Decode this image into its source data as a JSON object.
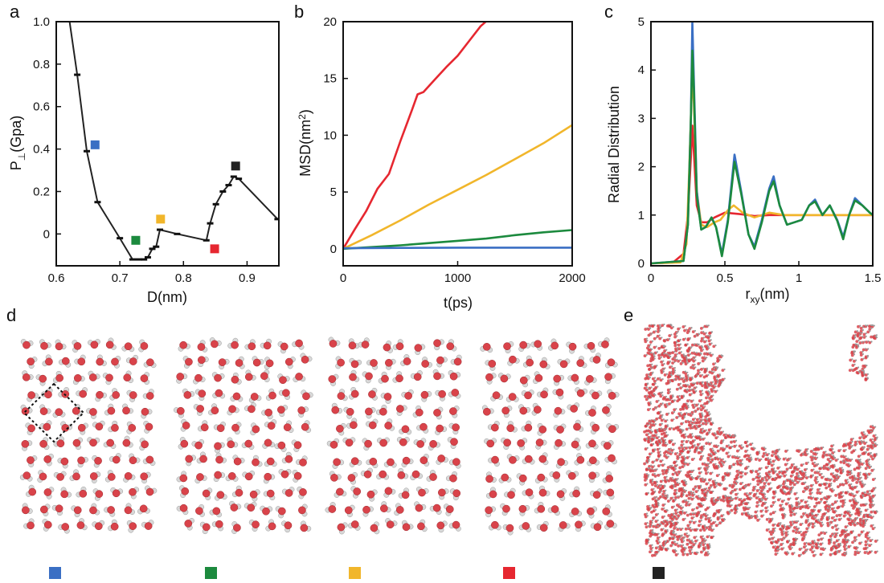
{
  "panel_letters": [
    "a",
    "b",
    "c",
    "d",
    "e"
  ],
  "colors": {
    "blue": "#3a6fc4",
    "green": "#1c8a3e",
    "yellow": "#f1b62b",
    "red": "#e62730",
    "black": "#222222",
    "oxygen": "#d9434a",
    "hydrogen": "#d8d8d8"
  },
  "legend_squares": [
    "blue",
    "green",
    "yellow",
    "red",
    "black"
  ],
  "chart_data": [
    {
      "panel": "a",
      "type": "line",
      "xlabel_main": "D(nm)",
      "ylabel_main": "P",
      "ylabel_sub": "⊥",
      "ylabel_rest": "(Gpa)",
      "xlim": [
        0.6,
        0.95
      ],
      "ylim": [
        -0.15,
        1.0
      ],
      "xticks": [
        0.6,
        0.7,
        0.8,
        0.9
      ],
      "xtick_labels": [
        "0.6",
        "0.7",
        "0.8",
        "0.9"
      ],
      "yticks": [
        0,
        0.2,
        0.4,
        0.6,
        0.8,
        1.0
      ],
      "ytick_labels": [
        "0",
        "0.2",
        "0.4",
        "0.6",
        "0.8",
        "1.0"
      ],
      "series": [
        {
          "color": "black",
          "x": [
            0.621,
            0.633,
            0.648,
            0.665,
            0.7,
            0.72,
            0.73,
            0.738,
            0.744,
            0.751,
            0.757,
            0.763,
            0.79,
            0.836,
            0.842,
            0.851,
            0.862,
            0.871,
            0.879,
            0.887,
            0.948
          ],
          "y": [
            1.0,
            0.75,
            0.39,
            0.15,
            -0.02,
            -0.12,
            -0.12,
            -0.12,
            -0.11,
            -0.07,
            -0.06,
            0.02,
            0.0,
            -0.03,
            0.05,
            0.14,
            0.2,
            0.23,
            0.27,
            0.26,
            0.07
          ]
        }
      ],
      "markers": [
        {
          "color": "blue",
          "x": 0.661,
          "y": 0.42
        },
        {
          "color": "green",
          "x": 0.725,
          "y": -0.03
        },
        {
          "color": "yellow",
          "x": 0.764,
          "y": 0.07
        },
        {
          "color": "red",
          "x": 0.849,
          "y": -0.07
        },
        {
          "color": "black",
          "x": 0.882,
          "y": 0.32
        }
      ]
    },
    {
      "panel": "b",
      "type": "line",
      "xlabel_main": "t(ps)",
      "ylabel_main": "MSD(nm",
      "ylabel_sup": "2",
      "ylabel_rest": ")",
      "xlim": [
        0,
        2000
      ],
      "ylim": [
        -1.5,
        20
      ],
      "xticks": [
        0,
        1000,
        2000
      ],
      "xtick_labels": [
        "0",
        "1000",
        "2000"
      ],
      "yticks": [
        0,
        5,
        10,
        15,
        20
      ],
      "ytick_labels": [
        "0",
        "5",
        "10",
        "15",
        "20"
      ],
      "series": [
        {
          "color": "red",
          "x": [
            0,
            100,
            200,
            300,
            400,
            500,
            600,
            650,
            700,
            800,
            900,
            1000,
            1100,
            1200,
            1245
          ],
          "y": [
            0,
            1.7,
            3.3,
            5.3,
            6.6,
            9.5,
            12.2,
            13.6,
            13.8,
            14.9,
            16.0,
            17.0,
            18.3,
            19.6,
            20.0
          ]
        },
        {
          "color": "yellow",
          "x": [
            0,
            250,
            500,
            750,
            1000,
            1250,
            1500,
            1750,
            2000
          ],
          "y": [
            0,
            1.2,
            2.5,
            3.9,
            5.2,
            6.5,
            7.9,
            9.3,
            10.9
          ]
        },
        {
          "color": "green",
          "x": [
            0,
            250,
            500,
            750,
            1000,
            1250,
            1500,
            1750,
            2000
          ],
          "y": [
            0,
            0.15,
            0.3,
            0.5,
            0.7,
            0.9,
            1.2,
            1.45,
            1.65
          ]
        },
        {
          "color": "blue",
          "x": [
            0,
            500,
            1000,
            1500,
            2000
          ],
          "y": [
            0.05,
            0.08,
            0.1,
            0.1,
            0.1
          ]
        }
      ]
    },
    {
      "panel": "c",
      "type": "line",
      "xlabel_main": "r",
      "xlabel_sub": "xy",
      "xlabel_rest": "(nm)",
      "ylabel_main": "Radial Distribution",
      "xlim": [
        0,
        1.5
      ],
      "ylim": [
        -0.05,
        5.0
      ],
      "xticks": [
        0,
        0.5,
        1.0,
        1.5
      ],
      "xtick_labels": [
        "0",
        "0.5",
        "1",
        "1.5"
      ],
      "yticks": [
        0,
        1,
        2,
        3,
        4,
        5
      ],
      "ytick_labels": [
        "0",
        "1",
        "2",
        "3",
        "4",
        "5"
      ],
      "series": [
        {
          "color": "red",
          "x": [
            0,
            0.15,
            0.22,
            0.25,
            0.27,
            0.28,
            0.29,
            0.31,
            0.34,
            0.38,
            0.43,
            0.5,
            0.6,
            0.7,
            0.8,
            1.0,
            1.2,
            1.5
          ],
          "y": [
            0,
            0.02,
            0.2,
            1.0,
            2.2,
            2.85,
            2.3,
            1.2,
            0.85,
            0.85,
            0.95,
            1.05,
            1.02,
            0.98,
            1.0,
            1.0,
            1.0,
            1.0
          ]
        },
        {
          "color": "yellow",
          "x": [
            0,
            0.2,
            0.24,
            0.26,
            0.28,
            0.29,
            0.31,
            0.34,
            0.38,
            0.43,
            0.47,
            0.52,
            0.56,
            0.62,
            0.7,
            0.8,
            0.9,
            1.0,
            1.5
          ],
          "y": [
            0,
            0.02,
            0.4,
            2.0,
            4.0,
            3.3,
            1.5,
            0.8,
            0.75,
            0.85,
            0.9,
            1.1,
            1.2,
            1.05,
            0.95,
            1.05,
            1.0,
            1.0,
            1.0
          ]
        },
        {
          "color": "blue",
          "x": [
            0,
            0.22,
            0.25,
            0.27,
            0.28,
            0.29,
            0.31,
            0.34,
            0.37,
            0.41,
            0.44,
            0.48,
            0.52,
            0.565,
            0.61,
            0.66,
            0.7,
            0.75,
            0.8,
            0.83,
            0.87,
            0.92,
            0.97,
            1.02,
            1.07,
            1.11,
            1.16,
            1.21,
            1.26,
            1.3,
            1.34,
            1.38,
            1.43,
            1.48,
            1.5
          ],
          "y": [
            0,
            0.05,
            0.8,
            3.0,
            5.0,
            3.8,
            1.5,
            0.7,
            0.75,
            0.95,
            0.75,
            0.2,
            0.9,
            2.25,
            1.5,
            0.6,
            0.35,
            0.9,
            1.55,
            1.8,
            1.2,
            0.8,
            0.85,
            0.9,
            1.2,
            1.32,
            1.0,
            1.2,
            0.9,
            0.55,
            1.0,
            1.35,
            1.2,
            1.05,
            1.0
          ]
        },
        {
          "color": "green",
          "x": [
            0,
            0.22,
            0.25,
            0.27,
            0.28,
            0.29,
            0.31,
            0.34,
            0.37,
            0.41,
            0.44,
            0.48,
            0.52,
            0.565,
            0.61,
            0.66,
            0.7,
            0.75,
            0.8,
            0.83,
            0.87,
            0.92,
            0.97,
            1.02,
            1.07,
            1.11,
            1.16,
            1.21,
            1.26,
            1.3,
            1.34,
            1.38,
            1.43,
            1.48,
            1.5
          ],
          "y": [
            0,
            0.05,
            0.8,
            3.0,
            4.4,
            3.6,
            1.4,
            0.7,
            0.75,
            0.95,
            0.75,
            0.15,
            0.85,
            2.1,
            1.45,
            0.6,
            0.3,
            0.85,
            1.5,
            1.7,
            1.2,
            0.8,
            0.85,
            0.9,
            1.2,
            1.28,
            1.0,
            1.2,
            0.88,
            0.5,
            1.0,
            1.3,
            1.2,
            1.05,
            1.0
          ]
        }
      ]
    }
  ]
}
